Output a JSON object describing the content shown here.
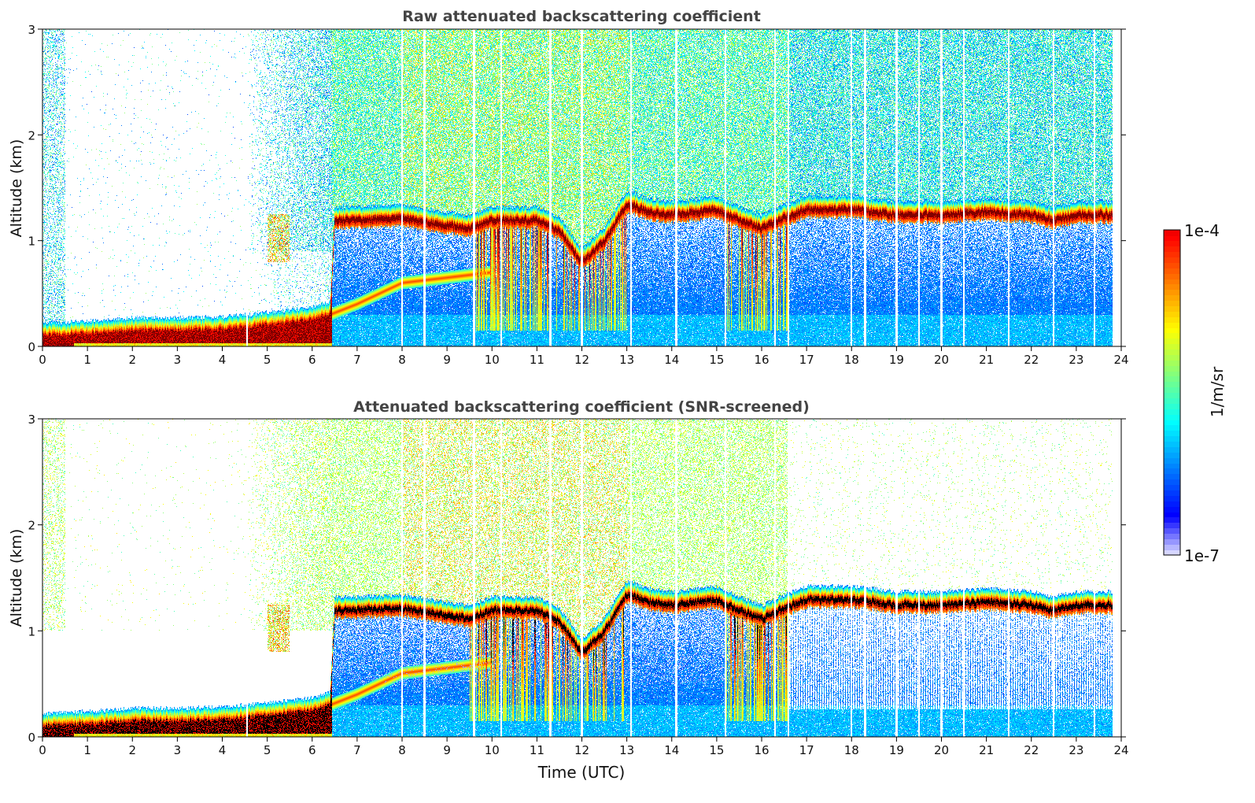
{
  "chart_data": [
    {
      "type": "heatmap",
      "title": "Raw attenuated backscattering coefficient",
      "xlabel": "",
      "ylabel": "Altitude (km)",
      "xlim": [
        0,
        24
      ],
      "ylim": [
        0,
        3
      ],
      "xticks": [
        "0",
        "1",
        "2",
        "3",
        "4",
        "5",
        "6",
        "7",
        "8",
        "9",
        "10",
        "11",
        "12",
        "13",
        "14",
        "15",
        "16",
        "17",
        "18",
        "19",
        "20",
        "21",
        "22",
        "23",
        "24"
      ],
      "yticks": [
        "0",
        "1",
        "2",
        "3"
      ],
      "screened": false
    },
    {
      "type": "heatmap",
      "title": "Attenuated backscattering coefficient (SNR-screened)",
      "xlabel": "Time (UTC)",
      "ylabel": "Altitude (km)",
      "xlim": [
        0,
        24
      ],
      "ylim": [
        0,
        3
      ],
      "xticks": [
        "0",
        "1",
        "2",
        "3",
        "4",
        "5",
        "6",
        "7",
        "8",
        "9",
        "10",
        "11",
        "12",
        "13",
        "14",
        "15",
        "16",
        "17",
        "18",
        "19",
        "20",
        "21",
        "22",
        "23",
        "24"
      ],
      "yticks": [
        "0",
        "1",
        "2",
        "3"
      ],
      "screened": true
    }
  ],
  "colorbar": {
    "label": "1/m/sr",
    "max_label": "1e-4",
    "min_label": "1e-7",
    "log_min": -7,
    "log_max": -4,
    "colormap": "jet"
  },
  "data_end_hour": 23.8,
  "strong_layer_height_km": {
    "t": [
      0,
      1,
      2,
      3,
      4,
      5,
      6,
      6.4,
      6.5,
      7,
      8,
      9,
      9.5,
      10,
      11,
      11.5,
      12,
      12.5,
      13,
      13.5,
      14,
      15,
      15.5,
      16,
      16.5,
      17,
      18,
      19,
      20,
      21,
      22,
      22.5,
      23,
      23.8
    ],
    "h": [
      0.1,
      0.12,
      0.15,
      0.15,
      0.16,
      0.2,
      0.25,
      0.3,
      1.2,
      1.2,
      1.22,
      1.15,
      1.12,
      1.2,
      1.2,
      1.1,
      0.8,
      1.0,
      1.35,
      1.28,
      1.25,
      1.3,
      1.2,
      1.12,
      1.22,
      1.3,
      1.3,
      1.25,
      1.25,
      1.28,
      1.25,
      1.2,
      1.25,
      1.25
    ]
  },
  "aerosol_layer_height_km": {
    "t": [
      6.4,
      7,
      8,
      9,
      10
    ],
    "h": [
      0.3,
      0.4,
      0.6,
      0.65,
      0.7
    ]
  },
  "data_gaps_hours": [
    4.55,
    8.0,
    8.5,
    9.6,
    10.2,
    11.3,
    12.0,
    13.1,
    14.1,
    15.2,
    16.3,
    16.6,
    18.0,
    18.3,
    19.0,
    19.5,
    20.0,
    20.5,
    21.5,
    22.5,
    23.4
  ]
}
